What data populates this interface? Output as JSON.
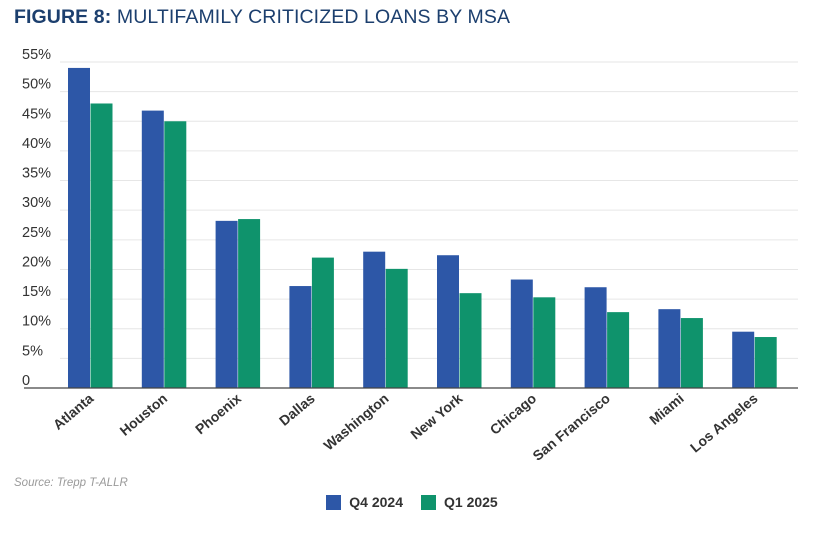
{
  "title": {
    "figure": "FIGURE 8:",
    "text": "MULTIFAMILY CRITICIZED LOANS BY MSA"
  },
  "source": "Source: Trepp T-ALLR",
  "colors": {
    "title": "#1c3f6e",
    "q4": "#2d57a7",
    "q1": "#0f936c",
    "grid": "#e6e6e6",
    "axis": "#444444"
  },
  "chart_data": {
    "type": "bar",
    "categories": [
      "Atlanta",
      "Houston",
      "Phoenix",
      "Dallas",
      "Washington",
      "New York",
      "Chicago",
      "San Francisco",
      "Miami",
      "Los Angeles"
    ],
    "series": [
      {
        "name": "Q4 2024",
        "values": [
          54.0,
          46.8,
          28.2,
          17.2,
          23.0,
          22.4,
          18.3,
          17.0,
          13.3,
          9.5
        ]
      },
      {
        "name": "Q1 2025",
        "values": [
          48.0,
          45.0,
          28.5,
          22.0,
          20.1,
          16.0,
          15.3,
          12.8,
          11.8,
          8.6
        ]
      }
    ],
    "yticks": [
      "0",
      "5%",
      "10%",
      "15%",
      "20%",
      "25%",
      "30%",
      "35%",
      "40%",
      "45%",
      "50%",
      "55%"
    ],
    "ylim": [
      0,
      55
    ],
    "grid": true,
    "legend_position": "bottom"
  }
}
